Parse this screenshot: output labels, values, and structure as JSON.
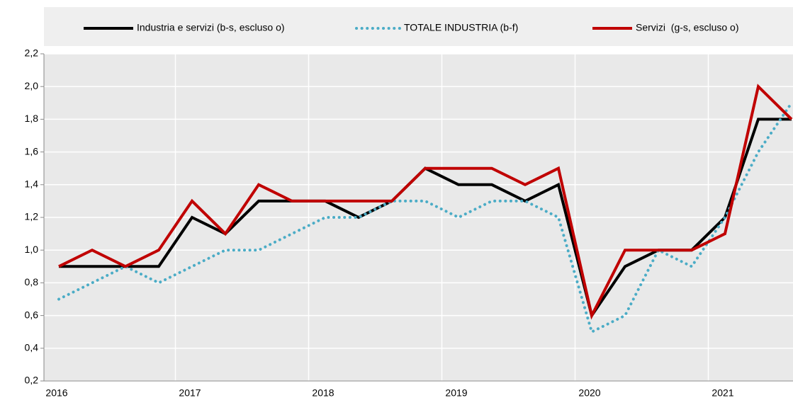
{
  "chart_data": {
    "type": "line",
    "categories": [
      "2016",
      null,
      null,
      null,
      "2017",
      null,
      null,
      null,
      "2018",
      null,
      null,
      null,
      "2019",
      null,
      null,
      null,
      "2020",
      null,
      null,
      null,
      "2021",
      null,
      null
    ],
    "series": [
      {
        "name": "Industria e servizi (b-s, escluso o)",
        "color": "#000000",
        "style": "solid",
        "values": [
          0.9,
          0.9,
          0.9,
          0.9,
          1.2,
          1.1,
          1.3,
          1.3,
          1.3,
          1.2,
          1.3,
          1.5,
          1.4,
          1.4,
          1.3,
          1.4,
          0.6,
          0.9,
          1.0,
          1.0,
          1.2,
          1.8,
          1.8
        ]
      },
      {
        "name": "TOTALE INDUSTRIA (b-f)",
        "color": "#4bacc6",
        "style": "dotted",
        "values": [
          0.7,
          0.8,
          0.9,
          0.8,
          0.9,
          1.0,
          1.0,
          1.1,
          1.2,
          1.2,
          1.3,
          1.3,
          1.2,
          1.3,
          1.3,
          1.2,
          0.5,
          0.6,
          1.0,
          0.9,
          1.2,
          1.6,
          1.9
        ]
      },
      {
        "name": "Servizi  (g-s, escluso o)",
        "color": "#c00000",
        "style": "solid",
        "values": [
          0.9,
          1.0,
          0.9,
          1.0,
          1.3,
          1.1,
          1.4,
          1.3,
          1.3,
          1.3,
          1.3,
          1.5,
          1.5,
          1.5,
          1.4,
          1.5,
          0.6,
          1.0,
          1.0,
          1.0,
          1.1,
          2.0,
          1.8
        ]
      }
    ],
    "ylim": [
      0.2,
      2.2
    ],
    "yticks": [
      {
        "value": 0.2,
        "label": "0,2"
      },
      {
        "value": 0.4,
        "label": "0,4"
      },
      {
        "value": 0.6,
        "label": "0,6"
      },
      {
        "value": 0.8,
        "label": "0,8"
      },
      {
        "value": 1.0,
        "label": "1,0"
      },
      {
        "value": 1.2,
        "label": "1,2"
      },
      {
        "value": 1.4,
        "label": "1,4"
      },
      {
        "value": 1.6,
        "label": "1,6"
      },
      {
        "value": 1.8,
        "label": "1,8"
      },
      {
        "value": 2.0,
        "label": "2,0"
      },
      {
        "value": 2.2,
        "label": "2,2"
      }
    ],
    "grid": true,
    "legend": "top"
  }
}
